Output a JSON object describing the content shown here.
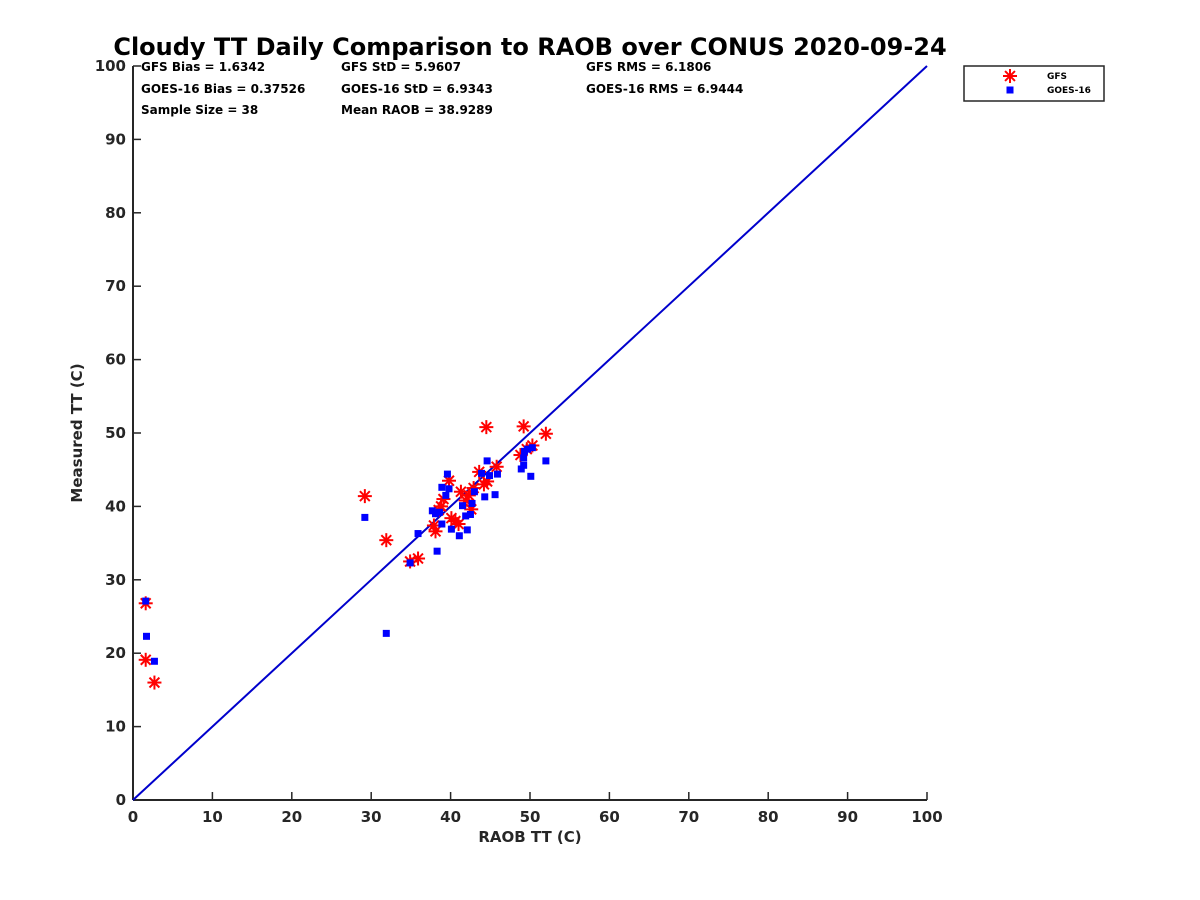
{
  "chart_data": {
    "type": "scatter",
    "title": "Cloudy TT Daily Comparison to RAOB over CONUS 2020-09-24",
    "xlabel": "RAOB TT (C)",
    "ylabel": "Measured TT (C)",
    "xlim": [
      0,
      100
    ],
    "ylim": [
      0,
      100
    ],
    "xticks": [
      0,
      10,
      20,
      30,
      40,
      50,
      60,
      70,
      80,
      90,
      100
    ],
    "yticks": [
      0,
      10,
      20,
      30,
      40,
      50,
      60,
      70,
      80,
      90,
      100
    ],
    "grid": false,
    "legend_position": "outside-top-right",
    "reference_line": {
      "from": [
        0,
        0
      ],
      "to": [
        100,
        100
      ],
      "color": "#0000cc"
    },
    "stats": [
      "GFS Bias = 1.6342",
      "GFS StD = 5.9607",
      "GFS RMS = 6.1806",
      "GOES-16 Bias = 0.37526",
      "GOES-16 StD = 6.9343",
      "GOES-16 RMS = 6.9444",
      "Sample Size = 38",
      "Mean RAOB = 38.9289"
    ],
    "series": [
      {
        "name": "GFS",
        "marker": "asterisk",
        "color": "#ff0000",
        "points": [
          [
            1.6,
            26.8
          ],
          [
            1.6,
            19.1
          ],
          [
            2.7,
            16.0
          ],
          [
            29.2,
            41.4
          ],
          [
            31.9,
            35.4
          ],
          [
            34.9,
            32.5
          ],
          [
            35.9,
            32.9
          ],
          [
            37.9,
            37.4
          ],
          [
            38.1,
            36.6
          ],
          [
            38.5,
            39.5
          ],
          [
            38.8,
            40.0
          ],
          [
            39.1,
            41.0
          ],
          [
            39.8,
            43.5
          ],
          [
            40.1,
            38.4
          ],
          [
            40.6,
            38.0
          ],
          [
            41.0,
            37.6
          ],
          [
            41.3,
            42.0
          ],
          [
            41.9,
            40.8
          ],
          [
            42.3,
            41.5
          ],
          [
            42.6,
            39.6
          ],
          [
            42.9,
            42.5
          ],
          [
            43.6,
            44.7
          ],
          [
            44.2,
            43.0
          ],
          [
            44.6,
            43.4
          ],
          [
            44.5,
            50.8
          ],
          [
            45.8,
            45.4
          ],
          [
            48.8,
            47.0
          ],
          [
            49.2,
            50.9
          ],
          [
            49.6,
            47.8
          ],
          [
            50.3,
            48.3
          ],
          [
            52.0,
            49.9
          ]
        ]
      },
      {
        "name": "GOES-16",
        "marker": "square",
        "color": "#0000ff",
        "points": [
          [
            1.6,
            27.1
          ],
          [
            1.7,
            22.3
          ],
          [
            2.7,
            18.9
          ],
          [
            29.2,
            38.5
          ],
          [
            31.9,
            22.7
          ],
          [
            34.9,
            32.3
          ],
          [
            35.9,
            36.3
          ],
          [
            37.7,
            39.4
          ],
          [
            38.1,
            39.0
          ],
          [
            38.3,
            33.9
          ],
          [
            38.6,
            39.2
          ],
          [
            38.9,
            37.6
          ],
          [
            38.9,
            42.6
          ],
          [
            39.4,
            41.5
          ],
          [
            39.6,
            44.4
          ],
          [
            39.8,
            42.4
          ],
          [
            40.1,
            36.9
          ],
          [
            41.1,
            36.0
          ],
          [
            41.5,
            40.1
          ],
          [
            41.9,
            38.7
          ],
          [
            42.1,
            36.8
          ],
          [
            42.5,
            38.9
          ],
          [
            42.7,
            40.4
          ],
          [
            43.0,
            42.0
          ],
          [
            43.9,
            44.5
          ],
          [
            44.3,
            41.3
          ],
          [
            44.6,
            46.2
          ],
          [
            44.9,
            44.2
          ],
          [
            45.6,
            41.6
          ],
          [
            45.9,
            44.4
          ],
          [
            48.9,
            45.1
          ],
          [
            49.2,
            45.6
          ],
          [
            49.2,
            46.6
          ],
          [
            49.3,
            47.5
          ],
          [
            49.7,
            47.8
          ],
          [
            50.1,
            44.1
          ],
          [
            50.3,
            48.0
          ],
          [
            52.0,
            46.2
          ]
        ]
      }
    ]
  }
}
